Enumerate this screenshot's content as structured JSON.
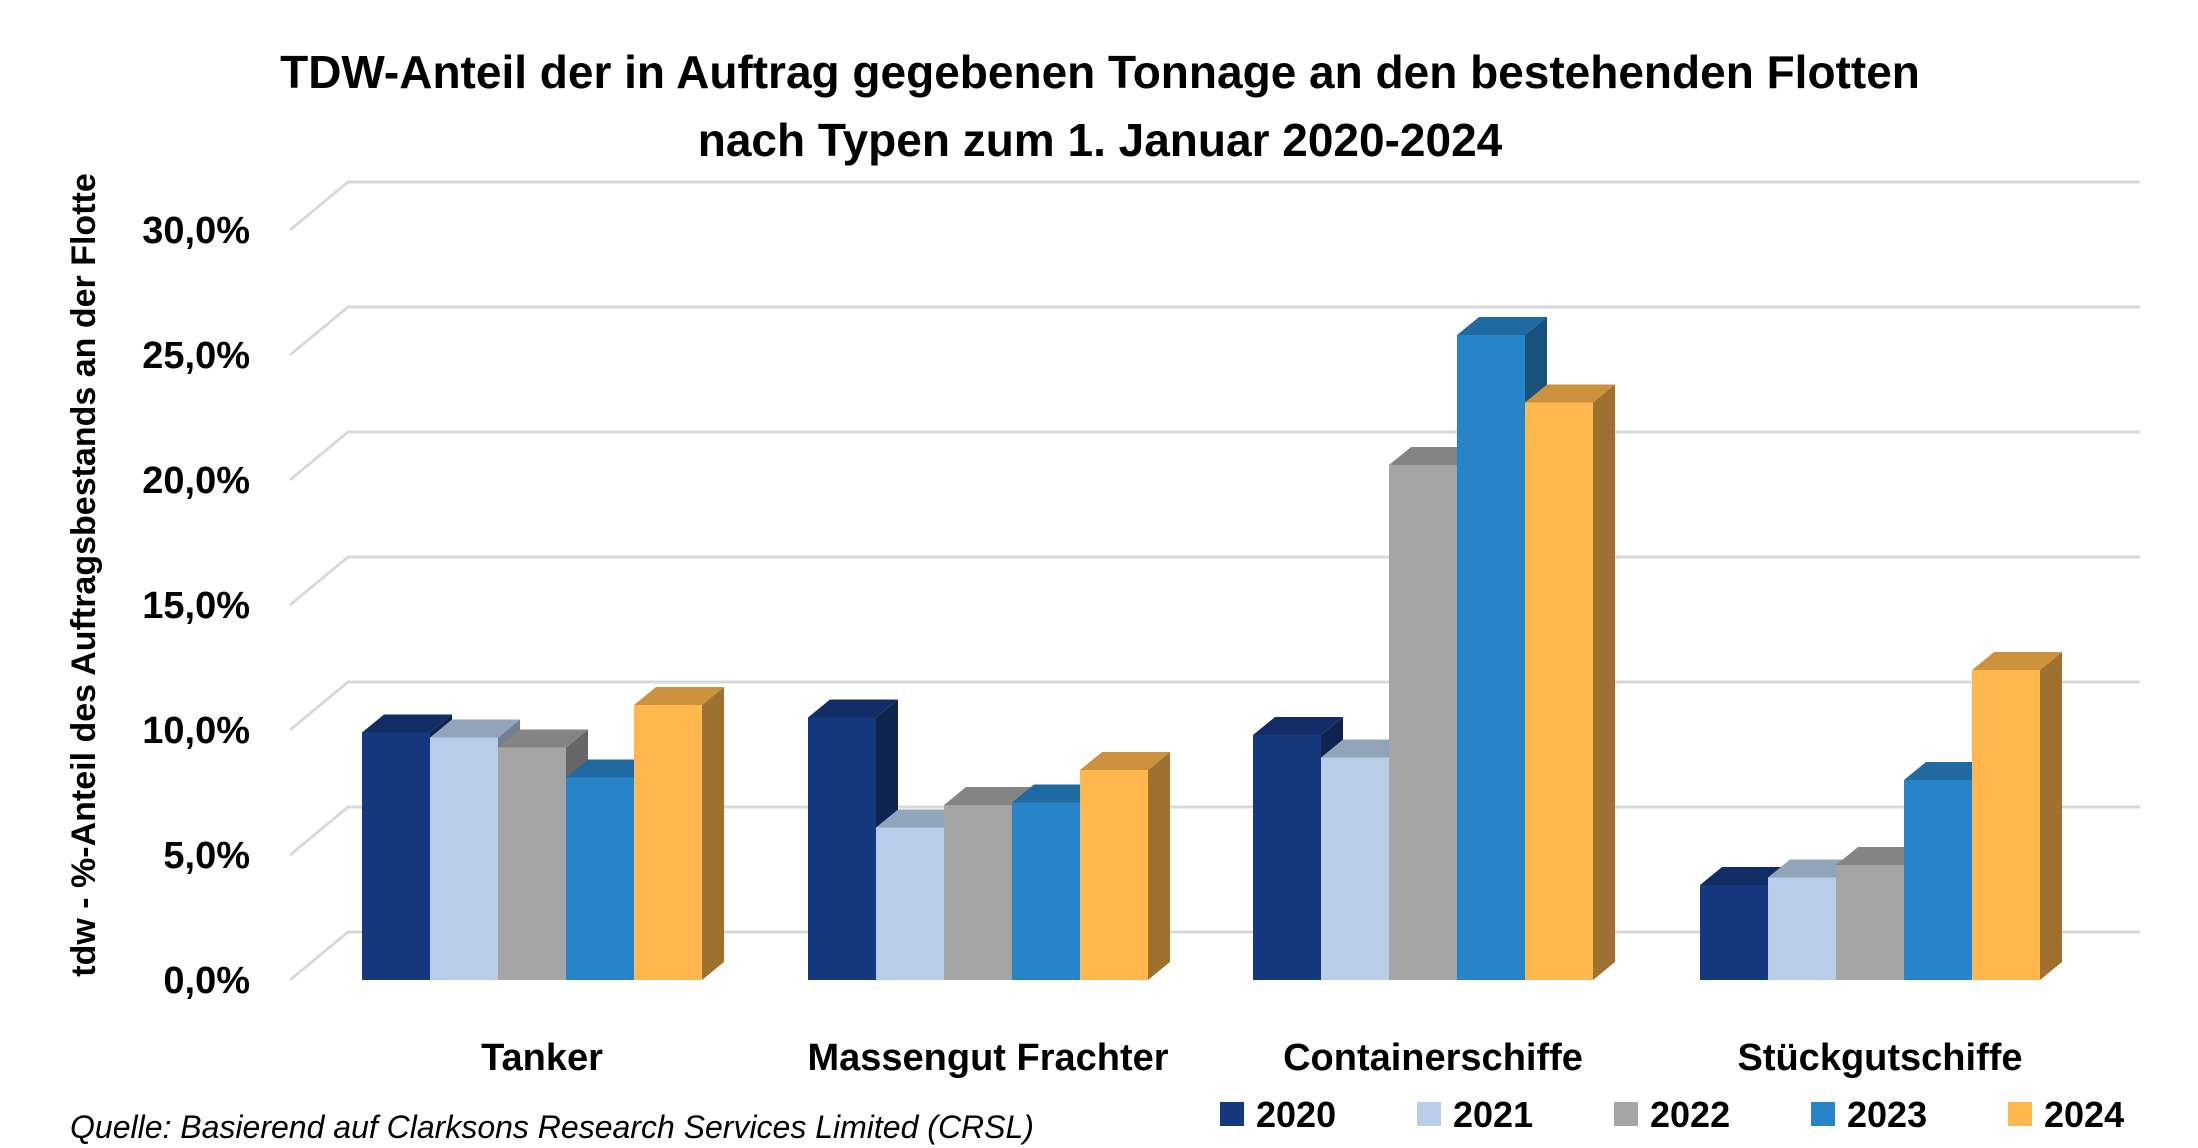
{
  "chart_data": {
    "type": "bar",
    "title_line1": "TDW-Anteil der in Auftrag gegebenen Tonnage an den bestehenden Flotten",
    "title_line2": "nach Typen zum 1. Januar 2020-2024",
    "ylabel": "tdw - %-Anteil des Auftragsbestands an der Flotte",
    "xlabel": "",
    "ylim": [
      0,
      30
    ],
    "y_ticks": [
      {
        "value": 0,
        "label": "0,0%"
      },
      {
        "value": 5,
        "label": "5,0%"
      },
      {
        "value": 10,
        "label": "10,0%"
      },
      {
        "value": 15,
        "label": "15,0%"
      },
      {
        "value": 20,
        "label": "20,0%"
      },
      {
        "value": 25,
        "label": "25,0%"
      },
      {
        "value": 30,
        "label": "30,0%"
      }
    ],
    "categories": [
      "Tanker",
      "Massengut Frachter",
      "Containerschiffe",
      "Stückgutschiffe"
    ],
    "series": [
      {
        "name": "2020",
        "color": "#16387E",
        "values": [
          9.9,
          10.5,
          9.8,
          3.8
        ]
      },
      {
        "name": "2021",
        "color": "#B7CDE8",
        "values": [
          9.7,
          6.1,
          8.9,
          4.1
        ]
      },
      {
        "name": "2022",
        "color": "#A5A5A5",
        "values": [
          9.3,
          7.0,
          20.6,
          4.6
        ]
      },
      {
        "name": "2023",
        "color": "#2784C8",
        "values": [
          8.1,
          7.1,
          25.8,
          8.0
        ]
      },
      {
        "name": "2024",
        "color": "#FFB74E",
        "values": [
          11.0,
          8.4,
          23.1,
          12.4
        ]
      }
    ],
    "grid": true,
    "legend_position": "bottom-right",
    "source": "Quelle: Basierend auf Clarksons Research Services Limited (CRSL)"
  }
}
